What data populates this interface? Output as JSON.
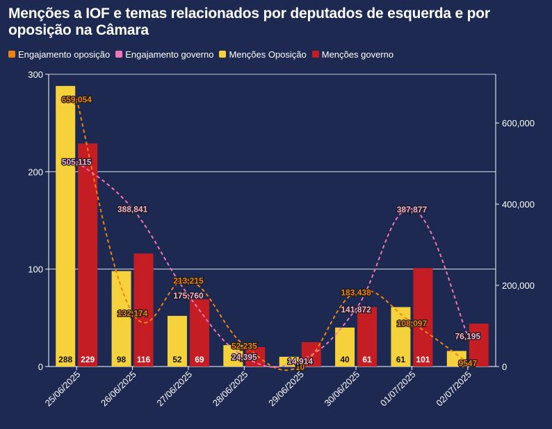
{
  "chart_data": {
    "type": "bar",
    "title": "Menções a IOF e temas relacionados por deputados de esquerda e por oposição na Câmara",
    "categories": [
      "25/06/2025",
      "26/06/2025",
      "27/06/2025",
      "28/06/2025",
      "29/06/2025",
      "30/06/2025",
      "01/07/2025",
      "02/07/2025"
    ],
    "series": [
      {
        "name": "Engajamento oposição",
        "kind": "line",
        "axis": "right",
        "color": "#f0820f",
        "style": "dashed",
        "values": [
          659054,
          132174,
          213215,
          52235,
          10,
          183438,
          108097,
          9547
        ],
        "labels": [
          "659,054",
          "132,174",
          "213,215",
          "52,235",
          "10",
          "183,438",
          "108,097",
          "9547"
        ]
      },
      {
        "name": "Engajamento governo",
        "kind": "line",
        "axis": "right",
        "color": "#f075b5",
        "style": "dashed",
        "values": [
          505115,
          388841,
          175760,
          24395,
          14914,
          141872,
          387877,
          76195
        ],
        "labels": [
          "505,115",
          "388,841",
          "175,760",
          "24,395",
          "14,914",
          "141,872",
          "387,877",
          "76,195"
        ]
      },
      {
        "name": "Menções Oposição",
        "kind": "bar",
        "axis": "left",
        "color": "#f5d13b",
        "values": [
          288,
          98,
          52,
          22,
          10,
          40,
          61,
          16
        ],
        "labels": [
          "288",
          "98",
          "52",
          "",
          "",
          "40",
          "61",
          ""
        ]
      },
      {
        "name": "Menções governo",
        "kind": "bar",
        "axis": "left",
        "color": "#c41e24",
        "values": [
          229,
          116,
          69,
          20,
          25,
          61,
          101,
          44
        ],
        "labels": [
          "229",
          "116",
          "69",
          "",
          "",
          "61",
          "101",
          ""
        ]
      }
    ],
    "y_left": {
      "min": 0,
      "max": 300,
      "ticks": [
        0,
        100,
        200,
        300
      ],
      "tick_labels": [
        "0",
        "100",
        "200",
        "300"
      ]
    },
    "y_right": {
      "min": 0,
      "max": 720000,
      "ticks": [
        0,
        200000,
        400000,
        600000
      ],
      "tick_labels": [
        "0",
        "200,000",
        "400,000",
        "600,000"
      ]
    },
    "grid": true,
    "legend": "top-left"
  }
}
